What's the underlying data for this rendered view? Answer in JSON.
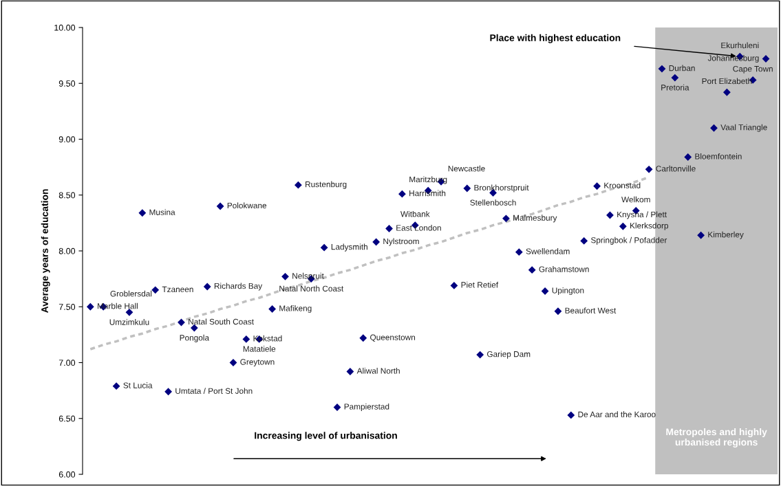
{
  "chart_data": {
    "type": "scatter",
    "ylabel": "Average years of education",
    "categories": [
      null,
      null,
      null,
      null,
      null,
      null,
      null,
      null,
      null,
      null,
      null,
      null,
      null,
      null,
      null,
      null,
      null,
      null,
      null,
      null,
      null,
      null,
      null,
      null,
      null,
      null,
      null,
      null,
      null,
      null,
      null,
      null,
      null,
      null,
      null,
      null,
      null,
      null,
      null,
      null,
      null,
      null,
      null,
      null,
      null,
      null,
      null,
      null,
      null,
      null,
      null,
      null,
      null
    ],
    "ylim": [
      6.0,
      10.0
    ],
    "yticks": [
      {
        "value": 6.0,
        "label": "6.00"
      },
      {
        "value": 6.5,
        "label": "6.50"
      },
      {
        "value": 7.0,
        "label": "7.00"
      },
      {
        "value": 7.5,
        "label": "7.50"
      },
      {
        "value": 8.0,
        "label": "8.00"
      },
      {
        "value": 8.5,
        "label": "8.50"
      },
      {
        "value": 9.0,
        "label": "9.00"
      },
      {
        "value": 9.5,
        "label": "9.50"
      },
      {
        "value": 10.0,
        "label": "10.00"
      }
    ],
    "tick_labels": "y",
    "series": [
      {
        "color": "#000080",
        "marker": "diamond",
        "values": [
          7.5,
          7.5,
          6.79,
          7.45,
          8.34,
          7.65,
          6.74,
          7.36,
          7.31,
          7.68,
          8.4,
          7.0,
          7.21,
          7.21,
          7.48,
          7.77,
          8.59,
          7.75,
          8.03,
          6.6,
          6.92,
          7.22,
          8.08,
          8.2,
          8.51,
          8.23,
          8.54,
          8.62,
          7.69,
          8.56,
          7.07,
          8.52,
          8.29,
          7.99,
          7.83,
          7.64,
          7.46,
          6.53,
          8.09,
          8.58,
          8.32,
          8.22,
          8.36,
          8.73,
          9.63,
          9.55,
          8.84,
          8.14,
          9.1,
          9.42,
          9.74,
          9.53,
          9.72
        ],
        "value_labels": [
          "Marble Hall",
          "Groblersdal",
          "St Lucia",
          "Umzimkulu",
          "Musina",
          "Tzaneen",
          "Umtata / Port St John",
          "Natal South Coast",
          "Pongola",
          "Richards Bay",
          "Polokwane",
          "Greytown",
          "Kokstad",
          "Matatiele",
          "Mafikeng",
          "Nelspruit",
          "Rustenburg",
          "Natal North Coast",
          "Ladysmith",
          "Pampierstad",
          "Aliwal North",
          "Queenstown",
          "Nylstroom",
          "East London",
          "Harrismith",
          "Witbank",
          "Maritzburg",
          "Newcastle",
          "Piet Retief",
          "Bronkhorstpruit",
          "Gariep Dam",
          "Stellenbosch",
          "Malmesbury",
          "Swellendam",
          "Grahamstown",
          "Upington",
          "Beaufort West",
          "De Aar and the Karoo",
          "Springbok / Pofadder",
          "Kroonstad",
          "Knysna / Plett",
          "Klerksdorp",
          "Welkom",
          "Carltonville",
          "Durban",
          "Pretoria",
          "Bloemfontein",
          "Kimberley",
          "Vaal Triangle",
          "Port Elizabeth",
          "Ekurhuleni",
          "Cape Town",
          "Johannesburg"
        ]
      },
      {
        "type": "line",
        "color": "#c0c0c0",
        "line_style": "dashed",
        "marker": "none",
        "values": [
          7.12,
          7.16,
          7.19,
          7.23,
          7.26,
          7.3,
          7.33,
          7.37,
          7.41,
          7.44,
          7.48,
          7.51,
          7.55,
          7.58,
          7.62,
          7.66,
          7.69,
          7.73,
          7.76,
          7.8,
          7.83,
          7.87,
          7.91,
          7.94,
          7.98,
          8.01,
          8.05,
          8.08,
          8.12,
          8.16,
          8.19,
          8.23,
          8.26,
          8.3,
          8.33,
          8.37,
          8.41,
          8.44,
          8.48,
          8.51,
          8.55,
          8.58,
          8.62,
          8.66,
          null,
          null,
          null,
          null,
          null,
          null,
          null,
          null,
          null
        ]
      }
    ],
    "annotations": [
      "Place with highest education",
      "Increasing level of urbanisation",
      "Metropoles and highly urbanised regions"
    ]
  }
}
